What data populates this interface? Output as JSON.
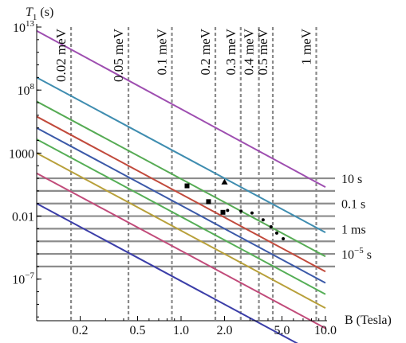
{
  "chart_data": {
    "type": "line",
    "y_axis_label": "T",
    "y_axis_label_sub": "1",
    "y_axis_label_unit": "(s)",
    "x_axis_label": "B (Tesla)",
    "x_scale": "log",
    "y_scale": "log",
    "xlim": [
      0.1,
      10.0
    ],
    "ylim_log10": [
      -10.3,
      13.0
    ],
    "x_ticks": [
      {
        "value": 0.2,
        "label": "0.2"
      },
      {
        "value": 0.5,
        "label": "0.5"
      },
      {
        "value": 1.0,
        "label": "1.0"
      },
      {
        "value": 2.0,
        "label": "2.0"
      },
      {
        "value": 5.0,
        "label": "5.0"
      },
      {
        "value": 10.0,
        "label": "10.0"
      }
    ],
    "y_ticks": [
      {
        "log10": 13,
        "base": "10",
        "exp": "13"
      },
      {
        "log10": 8,
        "base": "10",
        "exp": "8"
      },
      {
        "log10": 3,
        "base": "1000",
        "exp": ""
      },
      {
        "log10": -2,
        "base": "0.01",
        "exp": ""
      },
      {
        "log10": -7,
        "base": "10",
        "exp": "−7"
      }
    ],
    "zeeman_lines": [
      {
        "label": "0.02 meV",
        "b_tesla": 0.173
      },
      {
        "label": "0.05 meV",
        "b_tesla": 0.432
      },
      {
        "label": "0.1 meV",
        "b_tesla": 0.864
      },
      {
        "label": "0.2 meV",
        "b_tesla": 1.728
      },
      {
        "label": "0.3 meV",
        "b_tesla": 2.59
      },
      {
        "label": "0.4 meV",
        "b_tesla": 3.46
      },
      {
        "label": "0.5 meV",
        "b_tesla": 4.32
      },
      {
        "label": "1 meV",
        "b_tesla": 8.64
      }
    ],
    "time_lines_log10": [
      1.0,
      0.0,
      -1.0,
      -2.0,
      -3.0,
      -4.0,
      -5.0,
      -6.0
    ],
    "time_labels": [
      {
        "label": "10 s",
        "log10": 1.0
      },
      {
        "label": "0.1 s",
        "log10": -1.0
      },
      {
        "label": "1 ms",
        "log10": -3.0
      },
      {
        "label": "10",
        "sup": "−5",
        "unit": " s",
        "log10": -5.0
      }
    ],
    "series": [
      {
        "color": "#9e4eb0",
        "log10_at_b0_1": 12.7,
        "log10_at_b10": 0.3
      },
      {
        "color": "#3f8db0",
        "log10_at_b0_1": 9.0,
        "log10_at_b10": -3.3
      },
      {
        "color": "#56ab54",
        "log10_at_b0_1": 7.1,
        "log10_at_b10": -5.2
      },
      {
        "color": "#c14a3c",
        "log10_at_b0_1": 5.9,
        "log10_at_b10": -6.4
      },
      {
        "color": "#3b59a8",
        "log10_at_b0_1": 5.0,
        "log10_at_b10": -7.3
      },
      {
        "color": "#55ae56",
        "log10_at_b0_1": 4.1,
        "log10_at_b10": -8.2
      },
      {
        "color": "#b8a03a",
        "log10_at_b0_1": 3.0,
        "log10_at_b10": -9.3
      },
      {
        "color": "#c14b7a",
        "log10_at_b0_1": 1.4,
        "log10_at_b10": -10.9
      },
      {
        "color": "#3b3ea8",
        "log10_at_b0_1": -1.0,
        "log10_at_b10": -13.3
      }
    ],
    "markers": [
      {
        "b": 1.1,
        "log10": 0.4,
        "shape": "square"
      },
      {
        "b": 1.55,
        "log10": -0.85,
        "shape": "square"
      },
      {
        "b": 2.0,
        "log10": 0.7,
        "shape": "triangle"
      },
      {
        "b": 1.95,
        "log10": -1.7,
        "shape": "square"
      },
      {
        "b": 2.1,
        "log10": -1.55,
        "shape": "dot"
      },
      {
        "b": 2.6,
        "log10": -1.6,
        "shape": "dot"
      },
      {
        "b": 3.1,
        "log10": -1.75,
        "shape": "dot"
      },
      {
        "b": 3.7,
        "log10": -2.3,
        "shape": "dot"
      },
      {
        "b": 4.2,
        "log10": -2.85,
        "shape": "dot"
      },
      {
        "b": 4.6,
        "log10": -3.35,
        "shape": "dot"
      },
      {
        "b": 5.1,
        "log10": -3.8,
        "shape": "dot"
      }
    ],
    "grid": false,
    "legend": "none"
  }
}
